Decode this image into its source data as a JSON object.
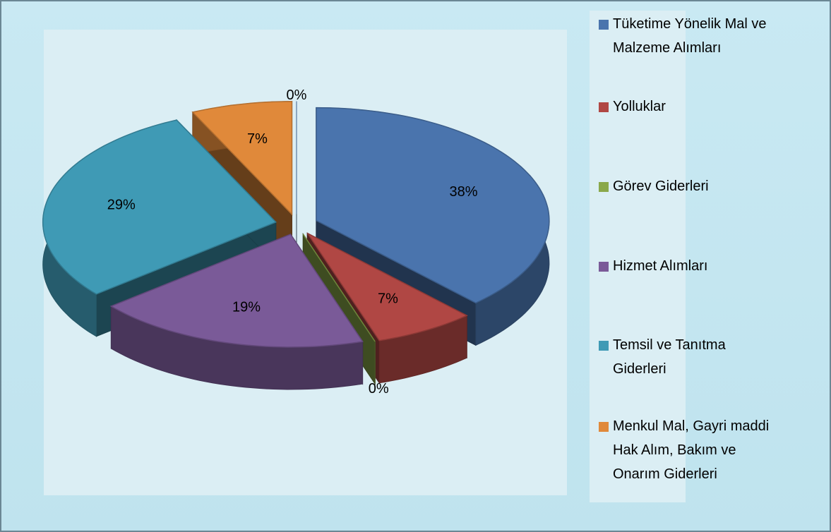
{
  "chart_data": {
    "type": "pie3d",
    "categories": [
      "Tüketime Yönelik Mal ve Malzeme Alımları",
      "Yolluklar",
      "Görev Giderleri",
      "Hizmet Alımları",
      "Temsil ve Tanıtma Giderleri",
      "Menkul Mal, Gayri maddi Hak Alım, Bakım ve Onarım Giderleri",
      null
    ],
    "values": [
      38,
      7,
      0,
      19,
      29,
      7,
      0
    ],
    "value_labels": [
      "38%",
      "7%",
      "0%",
      "19%",
      "29%",
      "7%",
      "0%"
    ],
    "colors": [
      "#4a74ad",
      "#b04744",
      "#8aa84a",
      "#7a5a98",
      "#3f9ab5",
      "#e0893a",
      "#8fb3d9"
    ],
    "legend": "right"
  }
}
